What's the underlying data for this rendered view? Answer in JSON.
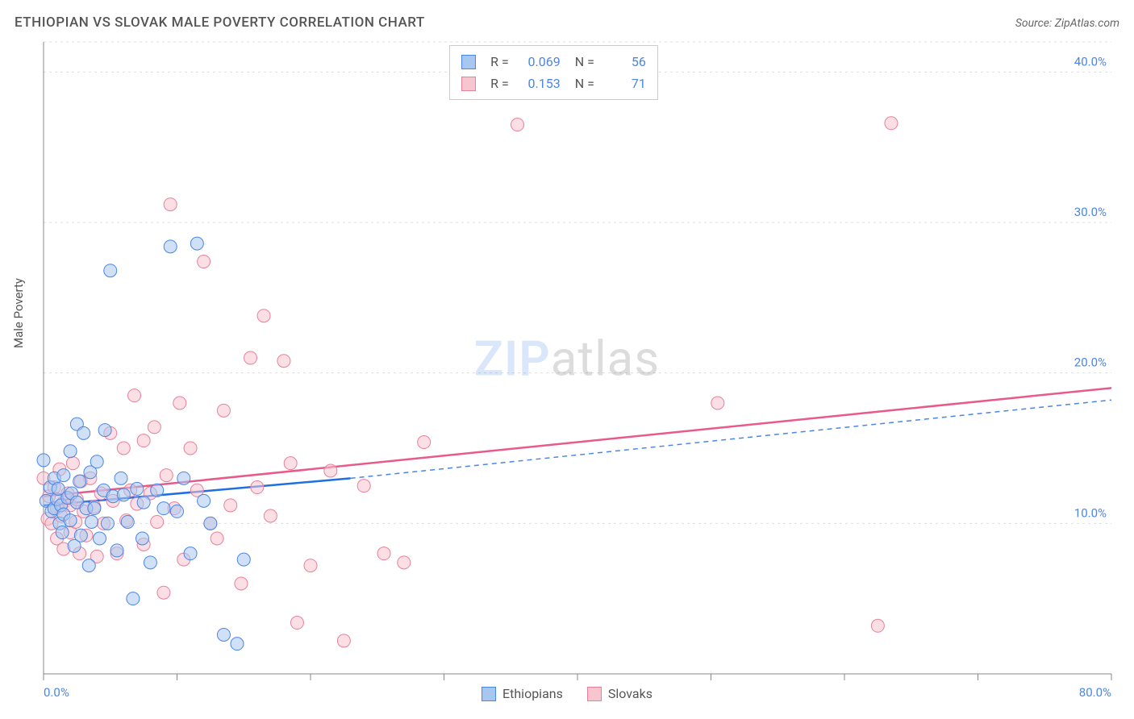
{
  "title": "ETHIOPIAN VS SLOVAK MALE POVERTY CORRELATION CHART",
  "source_label": "Source: ZipAtlas.com",
  "ylabel": "Male Poverty",
  "watermark": {
    "left": "ZIP",
    "right": "atlas"
  },
  "colors": {
    "series_a_fill": "#a7c7f0",
    "series_a_stroke": "#4a86e8",
    "series_b_fill": "#f7c5cf",
    "series_b_stroke": "#e8809a",
    "grid": "#dddddd",
    "axis": "#888888",
    "tick_label": "#4a86e8",
    "trend_a": "#1f6fe0",
    "trend_a_dash": "#4a86e8",
    "trend_b": "#e85a8a"
  },
  "chart": {
    "type": "scatter",
    "xlim": [
      0,
      80
    ],
    "ylim": [
      0,
      42
    ],
    "xticks_major": [
      0,
      10,
      20,
      30,
      40,
      50,
      60,
      70,
      80
    ],
    "yticks_major": [
      10,
      20,
      30,
      40
    ],
    "xticks_labeled": [
      {
        "v": 0,
        "t": "0.0%"
      },
      {
        "v": 80,
        "t": "80.0%"
      }
    ],
    "yticks_labeled": [
      {
        "v": 10,
        "t": "10.0%"
      },
      {
        "v": 20,
        "t": "20.0%"
      },
      {
        "v": 30,
        "t": "30.0%"
      },
      {
        "v": 40,
        "t": "40.0%"
      }
    ],
    "marker_radius": 8,
    "marker_opacity": 0.55,
    "line_width": 2.5,
    "background": "#ffffff"
  },
  "stats": {
    "rows": [
      {
        "series": "a",
        "R": "0.069",
        "N": "56"
      },
      {
        "series": "b",
        "R": "0.153",
        "N": "71"
      }
    ]
  },
  "legend": {
    "items": [
      {
        "series": "a",
        "label": "Ethiopians"
      },
      {
        "series": "b",
        "label": "Slovaks"
      }
    ]
  },
  "trend_lines": {
    "a_solid": {
      "x1": 0,
      "y1": 11.2,
      "x2": 23,
      "y2": 13.0
    },
    "a_dash": {
      "x1": 23,
      "y1": 13.0,
      "x2": 80,
      "y2": 18.2
    },
    "b": {
      "x1": 0,
      "y1": 11.8,
      "x2": 80,
      "y2": 19.0
    }
  },
  "series_a": [
    [
      0,
      14.2
    ],
    [
      0.2,
      11.5
    ],
    [
      0.5,
      12.4
    ],
    [
      0.6,
      10.8
    ],
    [
      0.8,
      13.0
    ],
    [
      0.8,
      11.0
    ],
    [
      1.0,
      11.6
    ],
    [
      1.1,
      12.3
    ],
    [
      1.2,
      10.0
    ],
    [
      1.3,
      11.2
    ],
    [
      1.4,
      9.4
    ],
    [
      1.5,
      13.2
    ],
    [
      1.5,
      10.6
    ],
    [
      1.8,
      11.7
    ],
    [
      2.0,
      14.8
    ],
    [
      2.0,
      10.2
    ],
    [
      2.1,
      12.0
    ],
    [
      2.3,
      8.5
    ],
    [
      2.5,
      16.6
    ],
    [
      2.5,
      11.4
    ],
    [
      2.7,
      12.8
    ],
    [
      2.8,
      9.2
    ],
    [
      3.0,
      16.0
    ],
    [
      3.2,
      11.0
    ],
    [
      3.4,
      7.2
    ],
    [
      3.5,
      13.4
    ],
    [
      3.6,
      10.1
    ],
    [
      3.8,
      11.0
    ],
    [
      4.0,
      14.1
    ],
    [
      4.2,
      9.0
    ],
    [
      4.5,
      12.2
    ],
    [
      4.6,
      16.2
    ],
    [
      4.8,
      10.0
    ],
    [
      5.0,
      26.8
    ],
    [
      5.2,
      11.8
    ],
    [
      5.5,
      8.2
    ],
    [
      5.8,
      13.0
    ],
    [
      6.0,
      11.9
    ],
    [
      6.3,
      10.1
    ],
    [
      6.7,
      5.0
    ],
    [
      7.0,
      12.3
    ],
    [
      7.4,
      9.0
    ],
    [
      7.5,
      11.4
    ],
    [
      8.0,
      7.4
    ],
    [
      8.5,
      12.2
    ],
    [
      9.0,
      11.0
    ],
    [
      9.5,
      28.4
    ],
    [
      10.0,
      10.8
    ],
    [
      10.5,
      13.0
    ],
    [
      11.0,
      8.0
    ],
    [
      11.5,
      28.6
    ],
    [
      12.0,
      11.5
    ],
    [
      12.5,
      10.0
    ],
    [
      13.5,
      2.6
    ],
    [
      14.5,
      2.0
    ],
    [
      15.0,
      7.6
    ]
  ],
  "series_b": [
    [
      0,
      13.0
    ],
    [
      0.3,
      10.3
    ],
    [
      0.4,
      11.8
    ],
    [
      0.6,
      10.0
    ],
    [
      0.8,
      12.4
    ],
    [
      1.0,
      9.0
    ],
    [
      1.0,
      11.0
    ],
    [
      1.2,
      13.6
    ],
    [
      1.3,
      10.5
    ],
    [
      1.5,
      8.3
    ],
    [
      1.5,
      11.4
    ],
    [
      1.8,
      12.0
    ],
    [
      2.0,
      11.2
    ],
    [
      2.0,
      9.4
    ],
    [
      2.2,
      14.0
    ],
    [
      2.4,
      10.1
    ],
    [
      2.5,
      11.6
    ],
    [
      2.7,
      8.0
    ],
    [
      2.8,
      12.8
    ],
    [
      3.0,
      10.8
    ],
    [
      3.2,
      9.2
    ],
    [
      3.5,
      13.0
    ],
    [
      3.8,
      11.1
    ],
    [
      4.0,
      7.8
    ],
    [
      4.3,
      12.0
    ],
    [
      4.5,
      10.0
    ],
    [
      5.0,
      16.0
    ],
    [
      5.2,
      11.5
    ],
    [
      5.5,
      8.0
    ],
    [
      6.0,
      15.0
    ],
    [
      6.2,
      10.2
    ],
    [
      6.5,
      12.2
    ],
    [
      6.8,
      18.5
    ],
    [
      7.0,
      11.3
    ],
    [
      7.5,
      15.5
    ],
    [
      7.5,
      8.6
    ],
    [
      8.0,
      12.0
    ],
    [
      8.3,
      16.4
    ],
    [
      8.5,
      10.1
    ],
    [
      9.0,
      5.4
    ],
    [
      9.2,
      13.2
    ],
    [
      9.5,
      31.2
    ],
    [
      9.8,
      11.0
    ],
    [
      10.2,
      18.0
    ],
    [
      10.5,
      7.6
    ],
    [
      11.0,
      15.0
    ],
    [
      11.5,
      12.2
    ],
    [
      12.0,
      27.4
    ],
    [
      12.5,
      10.0
    ],
    [
      13.0,
      9.0
    ],
    [
      13.5,
      17.5
    ],
    [
      14.0,
      11.2
    ],
    [
      14.8,
      6.0
    ],
    [
      15.5,
      21.0
    ],
    [
      16.0,
      12.4
    ],
    [
      16.5,
      23.8
    ],
    [
      17.0,
      10.5
    ],
    [
      18.0,
      20.8
    ],
    [
      18.5,
      14.0
    ],
    [
      19.0,
      3.4
    ],
    [
      20.0,
      7.2
    ],
    [
      21.5,
      13.5
    ],
    [
      22.5,
      2.2
    ],
    [
      24.0,
      12.5
    ],
    [
      25.5,
      8.0
    ],
    [
      27.0,
      7.4
    ],
    [
      28.5,
      15.4
    ],
    [
      35.5,
      36.5
    ],
    [
      50.5,
      18.0
    ],
    [
      62.5,
      3.2
    ],
    [
      63.5,
      36.6
    ]
  ]
}
